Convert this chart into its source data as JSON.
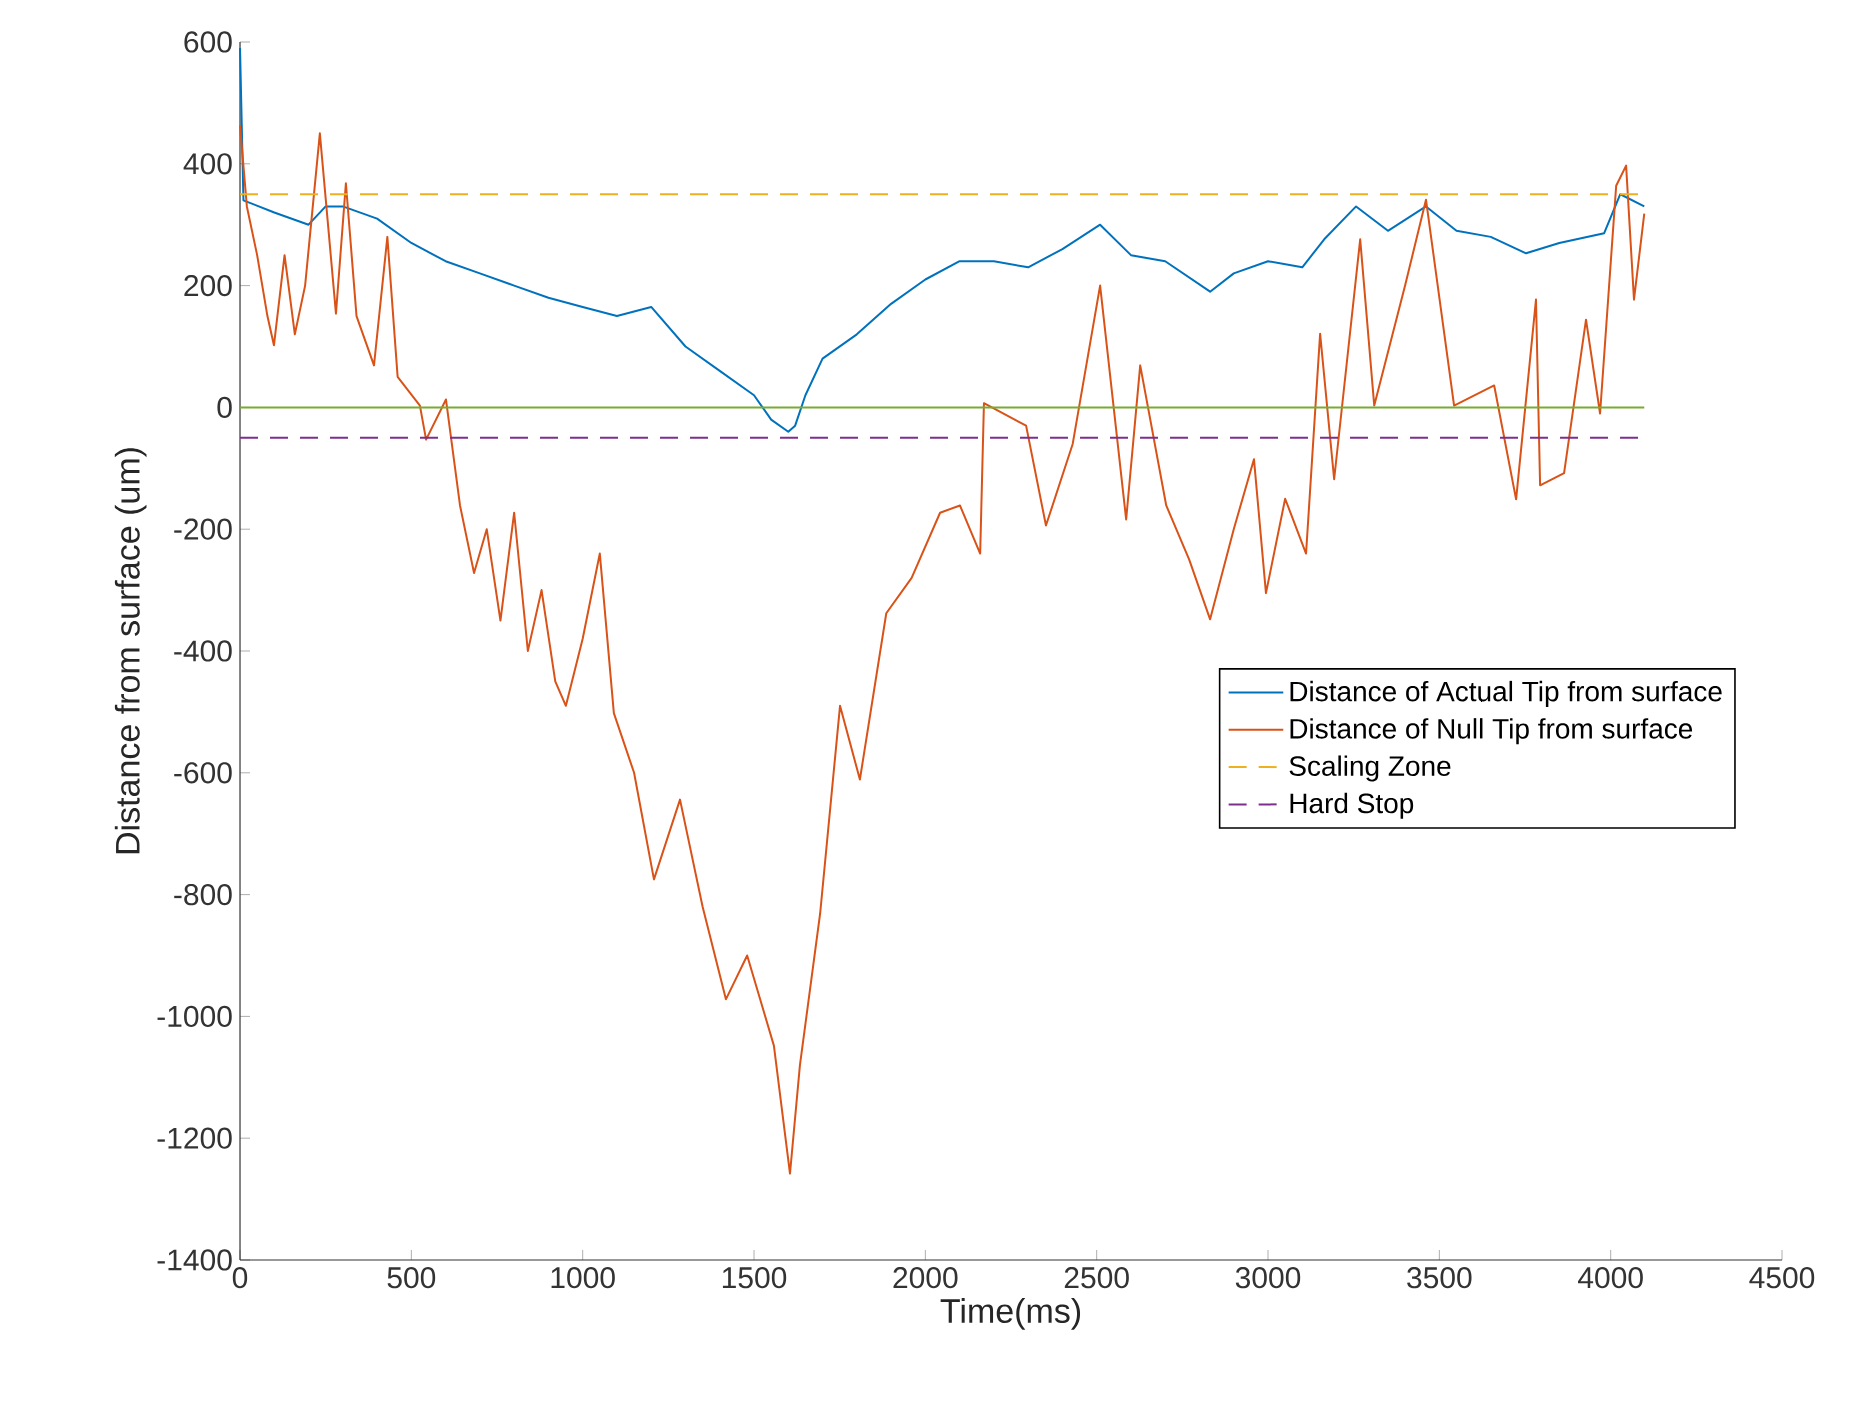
{
  "chart_data": {
    "type": "line",
    "xlabel": "Time(ms)",
    "ylabel": "Distance from surface (um)",
    "xlim": [
      0,
      4500
    ],
    "ylim": [
      -1400,
      600
    ],
    "xticks": [
      0,
      500,
      1000,
      1500,
      2000,
      2500,
      3000,
      3500,
      4000,
      4500
    ],
    "yticks": [
      -1400,
      -1200,
      -1000,
      -800,
      -600,
      -400,
      -200,
      0,
      200,
      400,
      600
    ],
    "grid": false,
    "legend": "right",
    "line_style": "solid",
    "series": [
      {
        "name": "Distance of Actual Tip from surface",
        "color": "#0072bd",
        "x": [
          0,
          10,
          100,
          200,
          250,
          300,
          400,
          500,
          600,
          700,
          800,
          900,
          1000,
          1100,
          1200,
          1300,
          1400,
          1500,
          1550,
          1600,
          1620,
          1650,
          1700,
          1800,
          1900,
          2000,
          2100,
          2200,
          2300,
          2400,
          2510,
          2600,
          2700,
          2831,
          2900,
          3000,
          3100,
          3164,
          3257,
          3350,
          3461,
          3550,
          3650,
          3753,
          3850,
          3981,
          4028,
          4098
        ],
        "values": [
          590,
          340,
          320,
          300,
          330,
          330,
          310,
          270,
          240,
          220,
          200,
          180,
          165,
          150,
          165,
          100,
          60,
          20,
          -20,
          -40,
          -30,
          20,
          80,
          120,
          170,
          210,
          240,
          240,
          230,
          260,
          300,
          250,
          240,
          190,
          220,
          240,
          230,
          276,
          330,
          290,
          330,
          290,
          280,
          253,
          270,
          286,
          350,
          330
        ]
      },
      {
        "name": "Distance of Null Tip from surface",
        "color": "#d95319",
        "x": [
          0,
          20,
          50,
          80,
          99,
          130,
          160,
          190,
          233,
          280,
          309,
          340,
          391,
          430,
          460,
          525,
          543,
          601,
          642,
          683,
          720,
          760,
          800,
          840,
          880,
          920,
          951,
          1000,
          1050,
          1091,
          1150,
          1208,
          1284,
          1350,
          1418,
          1480,
          1558,
          1605,
          1634,
          1693,
          1751,
          1809,
          1886,
          1960,
          2043,
          2101,
          2160,
          2171,
          2294,
          2352,
          2430,
          2510,
          2586,
          2627,
          2703,
          2770,
          2831,
          2900,
          2959,
          2994,
          3050,
          3111,
          3152,
          3193,
          3269,
          3310,
          3400,
          3461,
          3543,
          3660,
          3724,
          3782,
          3794,
          3864,
          3928,
          3969,
          4016,
          4045,
          4068,
          4098
        ],
        "values": [
          463,
          330,
          250,
          150,
          102,
          250,
          120,
          200,
          450,
          154,
          368,
          150,
          69,
          280,
          50,
          3,
          -53,
          13,
          -161,
          -272,
          -200,
          -350,
          -173,
          -400,
          -300,
          -450,
          -490,
          -380,
          -240,
          -502,
          -600,
          -775,
          -644,
          -820,
          -972,
          -900,
          -1048,
          -1258,
          -1080,
          -831,
          -490,
          -611,
          -338,
          -280,
          -173,
          -161,
          -240,
          7,
          -30,
          -194,
          -60,
          200,
          -184,
          69,
          -161,
          -250,
          -348,
          -200,
          -85,
          -305,
          -150,
          -240,
          121,
          -118,
          276,
          3,
          200,
          341,
          3,
          36,
          -151,
          177,
          -128,
          -108,
          144,
          -10,
          364,
          397,
          177,
          318
        ]
      }
    ],
    "ref_lines": [
      {
        "axis": "y",
        "value": 0,
        "color": "#77ac30",
        "line_style": "solid"
      },
      {
        "axis": "y",
        "value": 350,
        "label": "Scaling Zone",
        "color": "#edb120",
        "line_style": "dashed"
      },
      {
        "axis": "y",
        "value": -50,
        "label": "Hard Stop",
        "color": "#7e2f8e",
        "line_style": "dashed"
      }
    ]
  }
}
